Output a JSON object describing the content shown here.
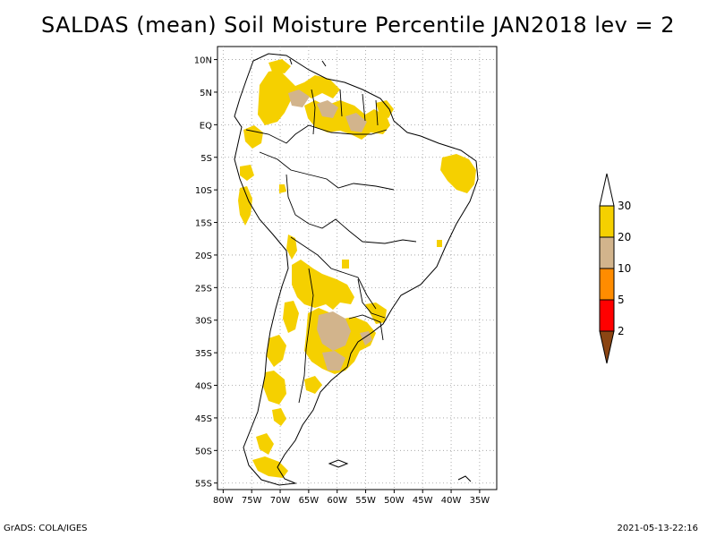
{
  "title": "SALDAS (mean) Soil Moisture Percentile JAN2018 lev = 2",
  "map": {
    "lat_labels": [
      "10N",
      "5N",
      "EQ",
      "5S",
      "10S",
      "15S",
      "20S",
      "25S",
      "30S",
      "35S",
      "40S",
      "45S",
      "50S",
      "55S"
    ],
    "lat_values": [
      10,
      5,
      0,
      -5,
      -10,
      -15,
      -20,
      -25,
      -30,
      -35,
      -40,
      -45,
      -50,
      -55
    ],
    "lon_labels": [
      "80W",
      "75W",
      "70W",
      "65W",
      "60W",
      "55W",
      "50W",
      "45W",
      "40W",
      "35W"
    ],
    "lon_values": [
      -80,
      -75,
      -70,
      -65,
      -60,
      -55,
      -50,
      -45,
      -40,
      -35
    ],
    "extent": {
      "lon_min": -81,
      "lon_max": -32,
      "lat_min": -56,
      "lat_max": 12
    }
  },
  "legend": {
    "labels": [
      "30",
      "20",
      "10",
      "5",
      "2"
    ],
    "colors": {
      "above_30": "#ffffff",
      "c20_30": "#f5d000",
      "c10_20": "#d2b48c",
      "c5_10": "#ff8c00",
      "c2_5": "#ff0000",
      "below_2": "#8b4513"
    }
  },
  "footer": {
    "left": "GrADS: COLA/IGES",
    "right": "2021-05-13-22:16"
  }
}
